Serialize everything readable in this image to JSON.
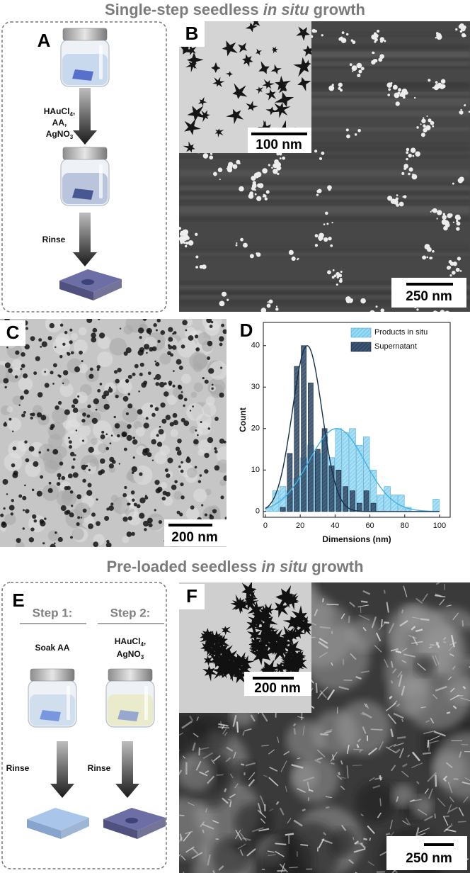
{
  "figure": {
    "title_top": [
      "Single-step seedless ",
      "in situ",
      " growth"
    ],
    "title_bottom": [
      "Pre-loaded seedless ",
      "in situ",
      " growth"
    ],
    "panel_a": {
      "label": "A",
      "reagents": [
        [
          "HAuCl",
          "4",
          ","
        ],
        [
          "AA,"
        ],
        [
          "AgNO",
          "3"
        ]
      ],
      "rinse": "Rinse"
    },
    "panel_b": {
      "label": "B",
      "inset_scale": "100 nm",
      "scale": "250 nm"
    },
    "panel_c": {
      "label": "C",
      "scale": "200 nm"
    },
    "panel_e": {
      "label": "E",
      "step1": "Step 1:",
      "step2": "Step 2:",
      "step1_reagent": "Soak AA",
      "step2_reagents": [
        [
          "HAuCl",
          "4",
          ","
        ],
        [
          "AgNO",
          "3"
        ]
      ],
      "rinse1": "Rinse",
      "rinse2": "Rinse"
    },
    "panel_f": {
      "label": "F",
      "inset_scale": "200 nm",
      "scale": "250 nm"
    }
  },
  "chart_data": {
    "type": "histogram",
    "panel_label": "D",
    "xlabel": "Dimensions (nm)",
    "ylabel": "Count",
    "bins": [
      0,
      4,
      8,
      12,
      16,
      20,
      24,
      28,
      32,
      36,
      40,
      44,
      48,
      52,
      56,
      60,
      64,
      68,
      72,
      76,
      80,
      84,
      88,
      92,
      96,
      100
    ],
    "series": [
      {
        "name": "Products in situ",
        "color": "#7fcff0",
        "values": [
          1,
          5,
          6,
          5,
          8,
          13,
          16,
          14,
          18,
          13,
          20,
          19,
          20,
          16,
          18,
          10,
          4,
          6,
          4,
          4,
          1,
          0,
          0,
          0,
          3
        ],
        "fit": {
          "center": 41,
          "sd": 16,
          "peak": 20
        }
      },
      {
        "name": "Supernatant",
        "color": "#3a5573",
        "values": [
          0,
          0,
          1,
          14,
          35,
          40,
          31,
          15,
          20,
          11,
          10,
          6,
          5,
          2,
          5,
          2,
          0,
          0,
          0,
          0,
          0,
          0,
          0,
          0,
          0
        ],
        "fit": {
          "center": 24,
          "sd": 8.5,
          "peak": 40
        }
      }
    ],
    "xlim": [
      -1.2,
      106.1
    ],
    "ylim": [
      -1.4,
      45.6
    ],
    "xticks": [
      0,
      20,
      40,
      60,
      80,
      100
    ],
    "yticks": [
      0,
      10,
      20,
      30,
      40
    ],
    "legend": "upper right"
  }
}
